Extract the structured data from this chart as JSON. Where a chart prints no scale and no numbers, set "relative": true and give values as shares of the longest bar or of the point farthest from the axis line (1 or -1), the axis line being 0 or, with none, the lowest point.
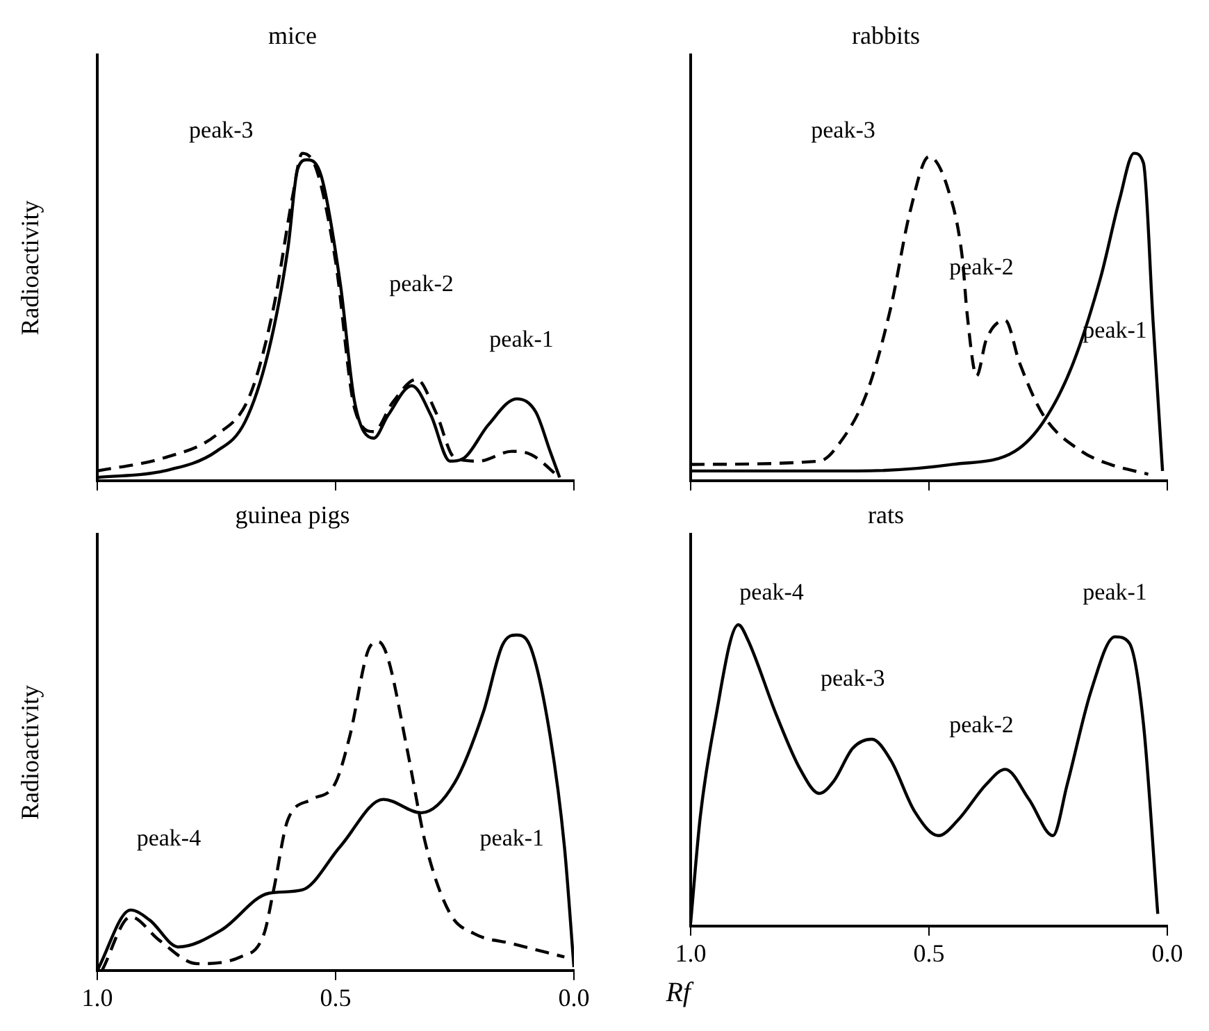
{
  "chart_data": [
    {
      "type": "line",
      "title": "mice",
      "ylabel": "Radioactivity",
      "relative": true,
      "marker": "none",
      "tick_labels": false,
      "xlim": [
        1.0,
        0.0
      ],
      "xticks": [
        1,
        0.5,
        0
      ],
      "series": [
        {
          "color": "#000000",
          "line_style": "solid",
          "x": [
            1.0,
            0.86,
            0.75,
            0.69,
            0.64,
            0.6,
            0.58,
            0.56,
            0.53,
            0.49,
            0.46,
            0.42,
            0.39,
            0.34,
            0.3,
            0.26,
            0.23,
            0.18,
            0.12,
            0.08,
            0.05,
            0.03
          ],
          "values": [
            0.01,
            0.03,
            0.09,
            0.18,
            0.4,
            0.71,
            0.95,
            0.98,
            0.93,
            0.6,
            0.24,
            0.13,
            0.2,
            0.29,
            0.2,
            0.06,
            0.07,
            0.17,
            0.25,
            0.21,
            0.09,
            0.01
          ]
        },
        {
          "color": "#000000",
          "line_style": "dashed",
          "x": [
            1.0,
            0.86,
            0.75,
            0.68,
            0.63,
            0.59,
            0.57,
            0.54,
            0.5,
            0.46,
            0.42,
            0.38,
            0.33,
            0.29,
            0.25,
            0.2,
            0.13,
            0.09,
            0.03
          ],
          "values": [
            0.03,
            0.07,
            0.14,
            0.26,
            0.53,
            0.87,
            1.0,
            0.95,
            0.67,
            0.22,
            0.15,
            0.24,
            0.31,
            0.21,
            0.07,
            0.06,
            0.09,
            0.08,
            0.01
          ]
        }
      ],
      "annotations": [
        "peak-3",
        "peak-2",
        "peak-1"
      ]
    },
    {
      "type": "line",
      "title": "rabbits",
      "relative": true,
      "marker": "none",
      "tick_labels": false,
      "xlim": [
        1.0,
        0.0
      ],
      "xticks": [
        1,
        0.5,
        0
      ],
      "series": [
        {
          "color": "#000000",
          "line_style": "solid",
          "x": [
            1.0,
            0.65,
            0.45,
            0.32,
            0.26,
            0.2,
            0.14,
            0.1,
            0.07,
            0.05,
            0.03,
            0.01
          ],
          "values": [
            0.03,
            0.03,
            0.05,
            0.09,
            0.18,
            0.35,
            0.62,
            0.86,
            1.0,
            0.97,
            0.49,
            0.03
          ]
        },
        {
          "color": "#000000",
          "line_style": "dashed",
          "x": [
            1.0,
            0.73,
            0.69,
            0.63,
            0.58,
            0.54,
            0.5,
            0.46,
            0.43,
            0.42,
            0.4,
            0.38,
            0.34,
            0.31,
            0.26,
            0.18,
            0.12,
            0.04
          ],
          "values": [
            0.05,
            0.06,
            0.11,
            0.27,
            0.53,
            0.82,
            0.99,
            0.89,
            0.68,
            0.51,
            0.32,
            0.43,
            0.49,
            0.36,
            0.2,
            0.09,
            0.05,
            0.02
          ]
        }
      ],
      "annotations": [
        "peak-3",
        "peak-2",
        "peak-1"
      ]
    },
    {
      "type": "line",
      "title": "guinea pigs",
      "ylabel": "Radioactivity",
      "relative": true,
      "marker": "none",
      "tick_labels": "x",
      "xlim": [
        1.0,
        0.0
      ],
      "xticks": [
        {
          "value": 1.0,
          "label": "1.0"
        },
        {
          "value": 0.5,
          "label": "0.5"
        },
        {
          "value": 0.0,
          "label": "0.0"
        }
      ],
      "series": [
        {
          "color": "#000000",
          "line_style": "solid",
          "x": [
            1.0,
            0.93,
            0.89,
            0.83,
            0.74,
            0.64,
            0.57,
            0.49,
            0.4,
            0.32,
            0.25,
            0.19,
            0.15,
            0.12,
            0.09,
            0.05,
            0.02,
            0.0
          ],
          "values": [
            0,
            0.18,
            0.15,
            0.07,
            0.12,
            0.23,
            0.24,
            0.37,
            0.51,
            0.47,
            0.56,
            0.77,
            0.97,
            1.0,
            0.96,
            0.7,
            0.37,
            0.01
          ]
        },
        {
          "color": "#000000",
          "line_style": "dashed",
          "x": [
            0.99,
            0.93,
            0.87,
            0.79,
            0.7,
            0.65,
            0.63,
            0.6,
            0.55,
            0.5,
            0.47,
            0.43,
            0.41,
            0.39,
            0.35,
            0.31,
            0.26,
            0.21,
            0.13,
            0.02
          ],
          "values": [
            0,
            0.16,
            0.09,
            0.02,
            0.04,
            0.11,
            0.24,
            0.45,
            0.51,
            0.56,
            0.7,
            0.96,
            0.98,
            0.93,
            0.66,
            0.37,
            0.17,
            0.11,
            0.08,
            0.04
          ]
        }
      ],
      "annotations": [
        "peak-4",
        "peak-1"
      ]
    },
    {
      "type": "line",
      "title": "rats",
      "xlabel": "Rf",
      "relative": true,
      "marker": "none",
      "tick_labels": "x",
      "xlim": [
        1.0,
        0.0
      ],
      "xticks": [
        {
          "value": 1.0,
          "label": "1.0"
        },
        {
          "value": 0.5,
          "label": "0.5"
        },
        {
          "value": 0.0,
          "label": "0.0"
        }
      ],
      "series": [
        {
          "color": "#000000",
          "line_style": "solid",
          "x": [
            1.0,
            0.98,
            0.95,
            0.9,
            0.88,
            0.82,
            0.77,
            0.73,
            0.7,
            0.66,
            0.62,
            0.58,
            0.53,
            0.48,
            0.44,
            0.38,
            0.34,
            0.29,
            0.24,
            0.21,
            0.16,
            0.11,
            0.08,
            0.05,
            0.02
          ],
          "values": [
            0.01,
            0.36,
            0.67,
            1.0,
            0.95,
            0.7,
            0.52,
            0.44,
            0.48,
            0.59,
            0.62,
            0.55,
            0.38,
            0.3,
            0.35,
            0.47,
            0.52,
            0.42,
            0.3,
            0.47,
            0.78,
            0.96,
            0.94,
            0.67,
            0.04
          ]
        }
      ],
      "annotations": [
        "peak-4",
        "peak-3",
        "peak-2",
        "peak-1"
      ]
    }
  ]
}
